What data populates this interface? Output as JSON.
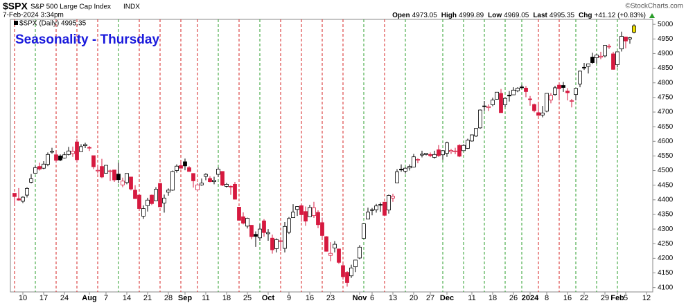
{
  "header": {
    "symbol": "$SPX",
    "name": "S&P 500 Large Cap Index",
    "exchange": "INDX",
    "timestamp": "7-Feb-2024 3:34pm",
    "credit": "©StockCharts.com",
    "quote": [
      {
        "label": "Open",
        "value": "4973.05"
      },
      {
        "label": "High",
        "value": "4999.89"
      },
      {
        "label": "Low",
        "value": "4969.05"
      },
      {
        "label": "Last",
        "value": "4995.35"
      },
      {
        "label": "Chg",
        "value": "+41.12 (+0.83%)"
      }
    ]
  },
  "chart_data": {
    "type": "candlestick",
    "title": "Seasonality - Thursday",
    "legend": "$SPX (Daily) 4995.35",
    "up_color": "#000000",
    "down_color": "#d6193f",
    "highlight_color": "#f0e000",
    "categories": [
      null,
      null,
      "10",
      null,
      null,
      null,
      null,
      "17",
      null,
      null,
      null,
      null,
      "24",
      null,
      null,
      null,
      null,
      null,
      "Aug",
      null,
      null,
      null,
      "7",
      null,
      null,
      null,
      null,
      "14",
      null,
      null,
      null,
      null,
      "21",
      null,
      null,
      null,
      null,
      "28",
      null,
      null,
      null,
      "Sep",
      null,
      null,
      null,
      null,
      "11",
      null,
      null,
      null,
      null,
      "18",
      null,
      null,
      null,
      null,
      "25",
      null,
      null,
      null,
      null,
      "Oct",
      null,
      null,
      null,
      null,
      "9",
      null,
      null,
      null,
      null,
      "16",
      null,
      null,
      null,
      null,
      "23",
      null,
      null,
      null,
      null,
      null,
      null,
      "Nov",
      null,
      null,
      "6",
      null,
      null,
      null,
      null,
      "13",
      null,
      null,
      null,
      null,
      "20",
      null,
      null,
      null,
      "27",
      null,
      null,
      null,
      "Dec",
      null,
      null,
      null,
      null,
      null,
      "11",
      null,
      null,
      null,
      null,
      "18",
      null,
      null,
      null,
      null,
      "26",
      null,
      null,
      null,
      "2024",
      null,
      null,
      null,
      "8",
      null,
      null,
      null,
      null,
      "16",
      null,
      null,
      null,
      "22",
      null,
      null,
      null,
      null,
      "29",
      null,
      null,
      "Feb",
      null,
      "5",
      null,
      null,
      null,
      null,
      "12"
    ],
    "open": [
      4422,
      4404,
      4395,
      4416,
      4460,
      4491,
      4514,
      4508,
      4521,
      4563,
      4554,
      4550,
      4543,
      4555,
      4558,
      4598,
      4565,
      4585,
      4579,
      4551,
      4500,
      4514,
      4491,
      4498,
      4502,
      4488,
      4451,
      4459,
      4478,
      4433,
      4416,
      4344,
      4380,
      4416,
      4397,
      4456,
      4389,
      4426,
      4433,
      4500,
      4517,
      4530,
      4510,
      4490,
      4434,
      4451,
      4480,
      4473,
      4462,
      4487,
      4497,
      4446,
      4446,
      4453,
      4375,
      4342,
      4310,
      4313,
      4282,
      4270,
      4328,
      4284,
      4269,
      4233,
      4260,
      4234,
      4289,
      4339,
      4367,
      4380,
      4360,
      4342,
      4346,
      4357,
      4322,
      4274,
      4210,
      4235,
      4232,
      4175,
      4152,
      4140,
      4171,
      4201,
      4268,
      4334,
      4364,
      4366,
      4384,
      4392,
      4365,
      4406,
      4458,
      4505,
      4498,
      4509,
      4512,
      4538,
      4553,
      4555,
      4555,
      4545,
      4571,
      4554,
      4559,
      4564,
      4567,
      4586,
      4568,
      4576,
      4601,
      4618,
      4646,
      4721,
      4715,
      4725,
      4744,
      4764,
      4725,
      4758,
      4759,
      4773,
      4786,
      4782,
      4745,
      4726,
      4698,
      4690,
      4703,
      4741,
      4760,
      4792,
      4791,
      4772,
      4739,
      4760,
      4796,
      4853,
      4856,
      4888,
      4886,
      4888,
      4892,
      4925,
      4899,
      4862,
      4916,
      4957,
      4950,
      4973,
      null,
      null,
      null
    ],
    "high": [
      4422,
      4440,
      4412,
      4443,
      4488,
      4517,
      4527,
      4532,
      4562,
      4578,
      4564,
      4555,
      4563,
      4581,
      4582,
      4607,
      4590,
      4595,
      4584,
      4551,
      4519,
      4540,
      4519,
      4503,
      4502,
      4527,
      4476,
      4490,
      4478,
      4450,
      4421,
      4381,
      4407,
      4418,
      4443,
      4458,
      4418,
      4439,
      4500,
      4521,
      4532,
      4541,
      4515,
      4491,
      4457,
      4473,
      4491,
      4481,
      4479,
      4511,
      4497,
      4458,
      4449,
      4461,
      4376,
      4357,
      4339,
      4314,
      4292,
      4317,
      4334,
      4300,
      4281,
      4268,
      4267,
      4324,
      4341,
      4385,
      4378,
      4385,
      4377,
      4383,
      4393,
      4364,
      4339,
      4276,
      4255,
      4259,
      4233,
      4183,
      4156,
      4178,
      4195,
      4245,
      4318,
      4373,
      4372,
      4386,
      4391,
      4393,
      4418,
      4421,
      4505,
      4521,
      4511,
      4521,
      4557,
      4542,
      4568,
      4560,
      4562,
      4568,
      4587,
      4569,
      4599,
      4574,
      4578,
      4590,
      4590,
      4609,
      4623,
      4644,
      4709,
      4738,
      4726,
      4749,
      4768,
      4779,
      4749,
      4772,
      4785,
      4785,
      4793,
      4789,
      4755,
      4729,
      4727,
      4721,
      4764,
      4765,
      4790,
      4799,
      4803,
      4782,
      4745,
      4783,
      4842,
      4868,
      4866,
      4903,
      4899,
      4906,
      4929,
      4932,
      4906,
      4907,
      4975,
      4958,
      4957,
      5000,
      null,
      null,
      null
    ],
    "low": [
      4385,
      4397,
      4389,
      4408,
      4456,
      4491,
      4500,
      4505,
      4515,
      4558,
      4527,
      4532,
      4541,
      4552,
      4547,
      4528,
      4564,
      4577,
      4567,
      4505,
      4490,
      4474,
      4491,
      4464,
      4461,
      4457,
      4443,
      4453,
      4432,
      4403,
      4364,
      4335,
      4360,
      4382,
      4397,
      4375,
      4356,
      4414,
      4431,
      4493,
      4507,
      4501,
      4496,
      4442,
      4430,
      4448,
      4467,
      4460,
      4453,
      4478,
      4447,
      4442,
      4417,
      4401,
      4329,
      4316,
      4302,
      4265,
      4239,
      4260,
      4274,
      4260,
      4216,
      4220,
      4225,
      4220,
      4283,
      4339,
      4345,
      4325,
      4311,
      4342,
      4338,
      4303,
      4269,
      4223,
      4190,
      4220,
      4181,
      4127,
      4103,
      4133,
      4153,
      4197,
      4268,
      4334,
      4347,
      4356,
      4359,
      4344,
      4353,
      4393,
      4458,
      4496,
      4490,
      4500,
      4511,
      4525,
      4545,
      4552,
      4546,
      4541,
      4547,
      4537,
      4547,
      4557,
      4556,
      4546,
      4566,
      4574,
      4599,
      4615,
      4643,
      4704,
      4704,
      4720,
      4743,
      4698,
      4717,
      4736,
      4758,
      4768,
      4780,
      4751,
      4722,
      4699,
      4687,
      4682,
      4699,
      4730,
      4756,
      4740,
      4769,
      4740,
      4716,
      4740,
      4785,
      4844,
      4832,
      4865,
      4866,
      4881,
      4887,
      4916,
      4845,
      4853,
      4907,
      4918,
      4934,
      4969,
      null,
      null,
      null
    ],
    "close": [
      4411,
      4399,
      4409,
      4439,
      4472,
      4510,
      4505,
      4522,
      4555,
      4566,
      4535,
      4536,
      4554,
      4567,
      4566,
      4537,
      4582,
      4589,
      4577,
      4513,
      4501,
      4478,
      4518,
      4499,
      4468,
      4469,
      4464,
      4490,
      4437,
      4404,
      4370,
      4370,
      4399,
      4387,
      4436,
      4376,
      4406,
      4433,
      4497,
      4515,
      4508,
      4516,
      4497,
      4465,
      4451,
      4457,
      4487,
      4462,
      4467,
      4505,
      4450,
      4453,
      4444,
      4402,
      4330,
      4320,
      4337,
      4274,
      4275,
      4300,
      4288,
      4288,
      4229,
      4264,
      4258,
      4309,
      4336,
      4358,
      4377,
      4349,
      4327,
      4374,
      4373,
      4315,
      4278,
      4224,
      4217,
      4248,
      4186,
      4137,
      4117,
      4167,
      4194,
      4238,
      4318,
      4358,
      4366,
      4379,
      4383,
      4347,
      4415,
      4412,
      4496,
      4502,
      4508,
      4514,
      4547,
      4538,
      4556,
      4559,
      4551,
      4555,
      4551,
      4568,
      4595,
      4569,
      4567,
      4549,
      4586,
      4604,
      4622,
      4644,
      4707,
      4720,
      4719,
      4741,
      4768,
      4698,
      4747,
      4755,
      4775,
      4782,
      4783,
      4770,
      4743,
      4705,
      4689,
      4697,
      4764,
      4757,
      4783,
      4780,
      4784,
      4766,
      4739,
      4781,
      4840,
      4851,
      4865,
      4869,
      4895,
      4891,
      4928,
      4925,
      4846,
      4906,
      4959,
      4943,
      4954,
      4995,
      null,
      null,
      null
    ],
    "vlines": [
      {
        "category": 0,
        "color": "#d62020"
      },
      {
        "category": 5,
        "color": "#2a9d2a"
      },
      {
        "category": 10,
        "color": "#d62020"
      },
      {
        "category": 15,
        "color": "#d62020"
      },
      {
        "category": 20,
        "color": "#d62020"
      },
      {
        "category": 25,
        "color": "#2a9d2a"
      },
      {
        "category": 30,
        "color": "#d62020"
      },
      {
        "category": 35,
        "color": "#d62020"
      },
      {
        "category": 40,
        "color": "#d62020"
      },
      {
        "category": 44,
        "color": "#d62020"
      },
      {
        "category": 49,
        "color": "#2a9d2a"
      },
      {
        "category": 54,
        "color": "#d62020"
      },
      {
        "category": 59,
        "color": "#2a9d2a"
      },
      {
        "category": 64,
        "color": "#d62020"
      },
      {
        "category": 69,
        "color": "#d62020"
      },
      {
        "category": 74,
        "color": "#d62020"
      },
      {
        "category": 79,
        "color": "#d62020"
      },
      {
        "category": 84,
        "color": "#2a9d2a"
      },
      {
        "category": 89,
        "color": "#d62020"
      },
      {
        "category": 94,
        "color": "#2a9d2a"
      },
      {
        "category": 103,
        "color": "#2a9d2a"
      },
      {
        "category": 108,
        "color": "#2a9d2a"
      },
      {
        "category": 113,
        "color": "#2a9d2a"
      },
      {
        "category": 118,
        "color": "#2a9d2a"
      },
      {
        "category": 122,
        "color": "#2a9d2a"
      },
      {
        "category": 126,
        "color": "#d62020"
      },
      {
        "category": 131,
        "color": "#d62020"
      },
      {
        "category": 135,
        "color": "#2a9d2a"
      },
      {
        "category": 140,
        "color": "#2a9d2a"
      },
      {
        "category": 145,
        "color": "#2a9d2a"
      }
    ],
    "ylim": [
      4085,
      5017
    ],
    "yticks": [
      4100,
      4150,
      4200,
      4250,
      4300,
      4350,
      4400,
      4450,
      4500,
      4550,
      4600,
      4650,
      4700,
      4750,
      4800,
      4850,
      4900,
      4950,
      5000
    ]
  }
}
